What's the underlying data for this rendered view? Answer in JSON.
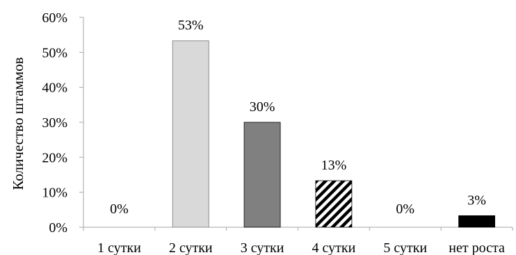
{
  "chart_data": {
    "type": "bar",
    "title": "",
    "xlabel": "",
    "ylabel": "Количество штаммов",
    "ylim": [
      0,
      60
    ],
    "yticks": [
      "0%",
      "10%",
      "20%",
      "30%",
      "40%",
      "50%",
      "60%"
    ],
    "grid": false,
    "categories": [
      "1 сутки",
      "2 сутки",
      "3 сутки",
      "4 сутки",
      "5 сутки",
      "нет роста"
    ],
    "values": [
      0,
      53.3,
      30,
      13.3,
      0,
      3.3
    ],
    "data_labels": [
      "0%",
      "53%",
      "30%",
      "13%",
      "0%",
      "3%"
    ],
    "fills": [
      "#d9d9d9",
      "#d9d9d9",
      "#808080",
      "diagonal-stripes",
      "#d9d9d9",
      "#000000"
    ]
  }
}
